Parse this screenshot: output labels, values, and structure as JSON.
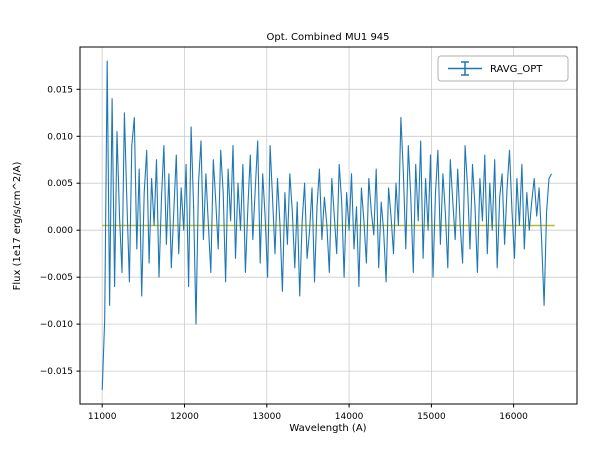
{
  "figure": {
    "background": "#ffffff"
  },
  "chart_data": {
    "type": "line",
    "title": "Opt. Combined MU1 945",
    "xlabel": "Wavelength (A)",
    "ylabel": "Flux (1e17 erg/s/cm^2/A)",
    "xlim": [
      10730,
      16770
    ],
    "ylim": [
      -0.0185,
      0.0195
    ],
    "grid": true,
    "legend": {
      "position": "upper right",
      "entries": [
        {
          "label": "RAVG_OPT",
          "color": "#1f77b4",
          "marker": "errorbar"
        }
      ]
    },
    "x_ticks": {
      "values": [
        11000,
        12000,
        13000,
        14000,
        15000,
        16000
      ],
      "labels": [
        "11000",
        "12000",
        "13000",
        "14000",
        "15000",
        "16000"
      ]
    },
    "y_ticks": {
      "values": [
        -0.015,
        -0.01,
        -0.005,
        0.0,
        0.005,
        0.01,
        0.015
      ],
      "labels": [
        "−0.015",
        "−0.010",
        "−0.005",
        "0.000",
        "0.005",
        "0.010",
        "0.015"
      ]
    },
    "series": [
      {
        "name": "RAVG_OPT",
        "color": "#1f77b4",
        "width": 1.1,
        "x_start": 11000,
        "x_step": 30,
        "values": [
          -0.017,
          -0.0095,
          0.018,
          -0.008,
          0.014,
          -0.006,
          0.0105,
          0.0015,
          -0.0045,
          0.0125,
          0.003,
          -0.0055,
          0.009,
          0.012,
          -0.002,
          0.0065,
          -0.007,
          0.004,
          0.0085,
          -0.0035,
          0.0055,
          0.0005,
          0.0075,
          -0.005,
          0.0035,
          0.009,
          -0.0015,
          0.006,
          -0.004,
          0.002,
          0.008,
          -0.0025,
          0.0045,
          0.0,
          0.007,
          -0.006,
          0.011,
          0.0025,
          -0.01,
          0.005,
          0.0095,
          -0.001,
          0.006,
          0.0005,
          -0.0045,
          0.0075,
          0.003,
          -0.002,
          0.0085,
          0.004,
          -0.0055,
          0.0065,
          0.001,
          0.009,
          -0.003,
          0.005,
          0.0,
          0.007,
          -0.0045,
          0.0025,
          0.008,
          -0.001,
          0.0045,
          0.0095,
          -0.0035,
          0.006,
          0.0015,
          -0.005,
          0.009,
          0.0035,
          -0.0025,
          0.0055,
          0.0005,
          -0.0065,
          0.004,
          -0.0015,
          0.006,
          0.002,
          -0.004,
          0.003,
          -0.007,
          0.001,
          0.005,
          -0.003,
          0.0,
          0.0045,
          -0.0055,
          0.0025,
          0.0065,
          -0.001,
          0.0035,
          0.0005,
          -0.0045,
          0.0055,
          0.0015,
          -0.0025,
          0.007,
          0.003,
          -0.005,
          0.004,
          0.0,
          0.006,
          -0.002,
          0.0025,
          -0.006,
          0.0045,
          0.001,
          -0.0035,
          0.0055,
          0.002,
          -0.0005,
          0.0065,
          -0.004,
          0.003,
          0.0,
          -0.0055,
          0.0045,
          0.0015,
          -0.0025,
          0.005,
          0.0005,
          0.012,
          0.006,
          -0.002,
          0.009,
          0.0035,
          -0.0045,
          0.007,
          0.001,
          0.0095,
          -0.003,
          0.0055,
          0.0,
          0.008,
          -0.005,
          0.004,
          0.0085,
          -0.0015,
          0.006,
          0.002,
          -0.004,
          0.0075,
          0.003,
          -0.001,
          0.0065,
          0.0005,
          -0.0035,
          0.009,
          0.0045,
          -0.002,
          0.007,
          0.0025,
          -0.0045,
          0.0055,
          0.001,
          0.008,
          -0.0025,
          0.005,
          0.0,
          0.0075,
          -0.004,
          0.0035,
          0.006,
          -0.0015,
          0.0045,
          0.0085,
          0.002,
          -0.003,
          0.0055,
          0.0005,
          0.007,
          -0.002,
          0.004,
          0.0,
          0.003,
          0.0055,
          0.0015,
          0.0045,
          -0.001,
          -0.008,
          0.002,
          0.0055,
          0.006
        ]
      },
      {
        "name": "baseline",
        "color": "#bcbd22",
        "width": 1.4,
        "x": [
          11000,
          16500
        ],
        "values": [
          0.0005,
          0.0005
        ]
      }
    ]
  }
}
